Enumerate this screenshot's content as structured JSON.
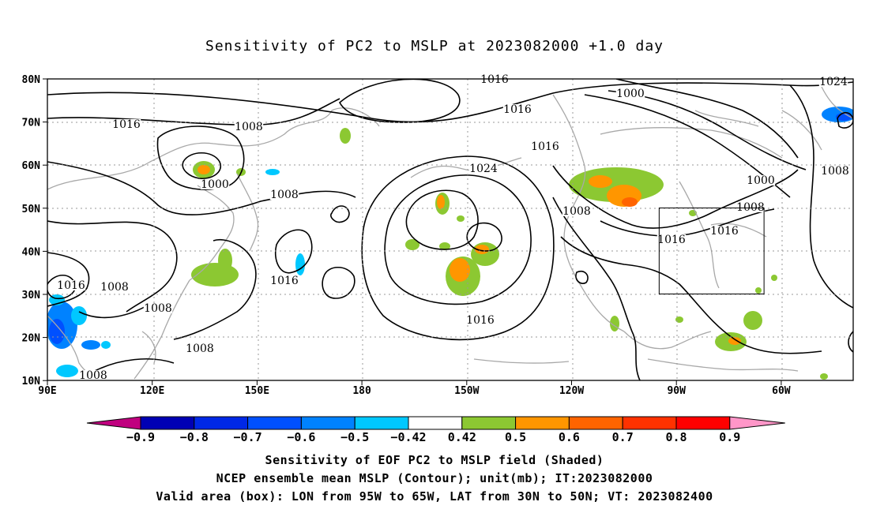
{
  "title": "Sensitivity of PC2 to MSLP at 2023082000 +1.0 day",
  "axes": {
    "lat_labels": [
      "80N",
      "70N",
      "60N",
      "50N",
      "40N",
      "30N",
      "20N",
      "10N"
    ],
    "lon_labels": [
      "90E",
      "120E",
      "150E",
      "180",
      "150W",
      "120W",
      "90W",
      "60W"
    ]
  },
  "colorbar": {
    "tick_labels": [
      "-0.9",
      "-0.8",
      "-0.7",
      "-0.6",
      "-0.5",
      "-0.42",
      "0.42",
      "0.5",
      "0.6",
      "0.7",
      "0.8",
      "0.9"
    ],
    "colors": {
      "low_tri": "#c0007f",
      "bins": [
        "#0000b4",
        "#0028e6",
        "#0050ff",
        "#0082ff",
        "#00c8ff",
        "#ffffff",
        "#8cc832",
        "#ff9600",
        "#ff6400",
        "#ff3200",
        "#ff0000"
      ],
      "high_tri": "#ff96c8"
    }
  },
  "contour_labels": [
    "1008",
    "1016",
    "1008",
    "1000",
    "1008",
    "1016",
    "1008",
    "1016",
    "1008",
    "1008",
    "1016",
    "1024",
    "1016",
    "1016",
    "1000",
    "1008",
    "1016",
    "1016",
    "1000",
    "1008",
    "1016",
    "1024",
    "1008"
  ],
  "valid_box": {
    "lon_min": -95,
    "lon_max": -65,
    "lat_min": 30,
    "lat_max": 50
  },
  "captions": [
    "Sensitivity of EOF PC2 to MSLP field (Shaded)",
    "NCEP ensemble mean MSLP (Contour); unit(mb); IT:2023082000",
    "Valid area (box): LON from 95W to 65W, LAT from 30N to 50N; VT: 2023082400"
  ]
}
